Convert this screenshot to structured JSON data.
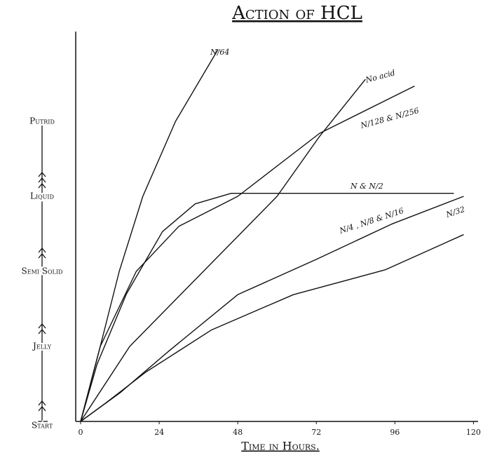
{
  "chart_data": {
    "type": "line",
    "title": "Action of HCL",
    "xlabel": "Time in Hours.",
    "xlim": [
      0,
      122
    ],
    "ylim": [
      0,
      5.2
    ],
    "xticks": [
      0,
      24,
      48,
      72,
      96,
      120
    ],
    "yticks": [
      {
        "value": 0,
        "label": "Start"
      },
      {
        "value": 1,
        "label": "Jelly"
      },
      {
        "value": 2,
        "label": "Semi Solid"
      },
      {
        "value": 3,
        "label": "Liquid"
      },
      {
        "value": 4,
        "label": "Putrid"
      }
    ],
    "series": [
      {
        "name": "N/64",
        "color": "#111111",
        "x": [
          0,
          6,
          11.8,
          19,
          29,
          42
        ],
        "values": [
          0,
          1.0,
          2.0,
          3.0,
          4.0,
          4.96
        ]
      },
      {
        "name": "No acid",
        "color": "#111111",
        "x": [
          0,
          15,
          37.5,
          60,
          73,
          87
        ],
        "values": [
          0,
          1.0,
          2.0,
          3.0,
          3.8,
          4.56
        ]
      },
      {
        "name": "N/128 & N/256",
        "color": "#111111",
        "x": [
          0,
          6,
          17,
          30,
          48,
          73,
          102
        ],
        "values": [
          0,
          1.0,
          2.0,
          2.6,
          3.0,
          3.84,
          4.47
        ]
      },
      {
        "name": "N & N/2",
        "color": "#111111",
        "x": [
          0,
          5,
          14,
          25,
          35,
          46,
          114
        ],
        "values": [
          0,
          0.76,
          1.7,
          2.53,
          2.9,
          3.04,
          3.04
        ]
      },
      {
        "name": "N/4 , N/8 & N/16",
        "color": "#111111",
        "x": [
          0,
          12,
          27,
          48,
          72,
          95,
          117
        ],
        "values": [
          0,
          0.38,
          0.94,
          1.69,
          2.16,
          2.63,
          3.0
        ]
      },
      {
        "name": "N/32",
        "color": "#111111",
        "x": [
          0,
          7.5,
          20,
          40,
          65,
          93,
          117
        ],
        "values": [
          0,
          0.24,
          0.66,
          1.22,
          1.69,
          2.02,
          2.49
        ]
      }
    ]
  }
}
